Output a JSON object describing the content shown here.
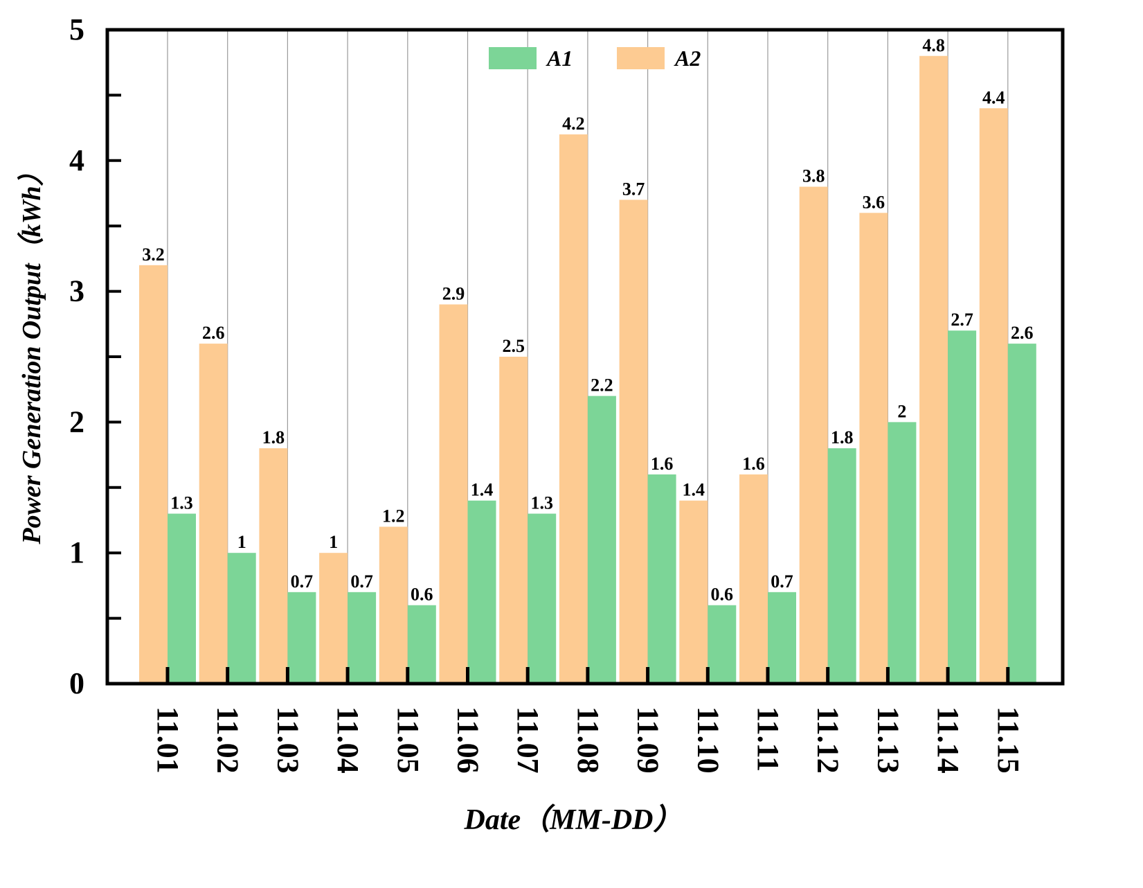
{
  "chart_data": {
    "type": "bar",
    "title": "",
    "xlabel": "Date（MM-DD）",
    "ylabel": "Power Generation Output（kWh）",
    "ylim": [
      0,
      5
    ],
    "yticks": [
      0,
      1,
      2,
      3,
      4,
      5
    ],
    "grid": "vertical",
    "legend_position": "top-center",
    "categories": [
      "11.01",
      "11.02",
      "11.03",
      "11.04",
      "11.05",
      "11.06",
      "11.07",
      "11.08",
      "11.09",
      "11.10",
      "11.11",
      "11.12",
      "11.13",
      "11.14",
      "11.15"
    ],
    "series": [
      {
        "name": "A2",
        "color": "#FDCB92",
        "values": [
          3.2,
          2.6,
          1.8,
          1,
          1.2,
          2.9,
          2.5,
          4.2,
          3.7,
          1.4,
          1.6,
          3.8,
          3.6,
          4.8,
          4.4
        ]
      },
      {
        "name": "A1",
        "color": "#7CD597",
        "values": [
          1.3,
          1,
          0.7,
          0.7,
          0.6,
          1.4,
          1.3,
          2.2,
          1.6,
          0.6,
          0.7,
          1.8,
          2,
          2.7,
          2.6
        ]
      }
    ],
    "legend_order": [
      "A1",
      "A2"
    ]
  }
}
